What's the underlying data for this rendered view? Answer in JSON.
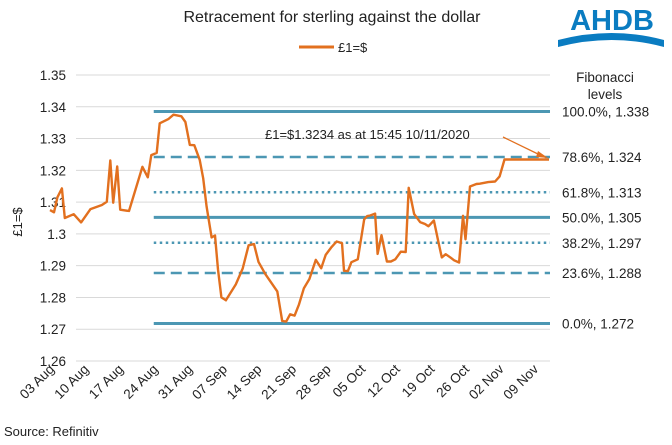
{
  "logo": {
    "text": "AHDB",
    "color": "#0a7cc1"
  },
  "source": "Source: Refinitiv",
  "colors": {
    "series": "#e2701f",
    "level": "#4c97b3",
    "grid": "#d9d9d9"
  },
  "chart_data": {
    "type": "line",
    "title": "Retracement for sterling against the dollar",
    "ylabel": "£1=$",
    "xlabel": "",
    "ylim": [
      1.26,
      1.35
    ],
    "yticks": [
      "1.26",
      "1.27",
      "1.28",
      "1.29",
      "1.3",
      "1.31",
      "1.32",
      "1.33",
      "1.34",
      "1.35"
    ],
    "grid": "horizontal",
    "legend_position": "top",
    "x_range": [
      0,
      101
    ],
    "x_ticks": [
      {
        "label": "03 Aug",
        "x": 0
      },
      {
        "label": "10 Aug",
        "x": 7
      },
      {
        "label": "17 Aug",
        "x": 14
      },
      {
        "label": "24 Aug",
        "x": 21
      },
      {
        "label": "31 Aug",
        "x": 28
      },
      {
        "label": "07 Sep",
        "x": 35
      },
      {
        "label": "14 Sep",
        "x": 42
      },
      {
        "label": "21 Sep",
        "x": 49
      },
      {
        "label": "28 Sep",
        "x": 56
      },
      {
        "label": "05 Oct",
        "x": 63
      },
      {
        "label": "12 Oct",
        "x": 70
      },
      {
        "label": "19 Oct",
        "x": 77
      },
      {
        "label": "26 Oct",
        "x": 84
      },
      {
        "label": "02 Nov",
        "x": 91
      },
      {
        "label": "09 Nov",
        "x": 98
      }
    ],
    "series": [
      {
        "name": "£1=$",
        "color": "#e2701f",
        "x": [
          0,
          0.8,
          1.5,
          2.4,
          3.0,
          4.8,
          6.3,
          8.2,
          10.5,
          11.5,
          12.2,
          12.8,
          13.6,
          14.2,
          16.0,
          18.7,
          19.8,
          20.5,
          21.6,
          22.2,
          24.0,
          25.0,
          26.6,
          27.4,
          28.3,
          29.2,
          30.3,
          31.0,
          31.7,
          32.7,
          33.4,
          34.0,
          34.7,
          35.6,
          37.6,
          39.0,
          40.2,
          41.3,
          42.2,
          43.6,
          46.0,
          47.0,
          47.8,
          48.6,
          49.5,
          50.4,
          51.4,
          52.5,
          53.8,
          54.9,
          55.8,
          56.9,
          58.0,
          59.1,
          59.5,
          60.3,
          61.0,
          62.3,
          63.6,
          64.2,
          64.8,
          65.8,
          66.3,
          67.1,
          68.2,
          69.0,
          69.9,
          71.0,
          72.0,
          72.6,
          73.7,
          74.9,
          75.9,
          76.6,
          77.7,
          78.6,
          79.3,
          80.1,
          81.1,
          81.8,
          82.8,
          83.6,
          84.1,
          85.0,
          86.3,
          87.0,
          88.7,
          90.1,
          91.0,
          92.0,
          92.6,
          93.3,
          94.2,
          95.0,
          95.7,
          96.6,
          97.1,
          98.0,
          99.0,
          100.2,
          101.0
        ],
        "y": [
          1.3075,
          1.3068,
          1.3115,
          1.3143,
          1.305,
          1.3062,
          1.3036,
          1.3078,
          1.3091,
          1.3101,
          1.3231,
          1.3098,
          1.3212,
          1.3076,
          1.3072,
          1.3211,
          1.3178,
          1.3248,
          1.3255,
          1.3348,
          1.3362,
          1.3375,
          1.337,
          1.3352,
          1.328,
          1.3279,
          1.3233,
          1.3175,
          1.3086,
          1.2989,
          1.2995,
          1.2888,
          1.28,
          1.2791,
          1.2841,
          1.2891,
          1.2964,
          1.2968,
          1.2912,
          1.2873,
          1.2819,
          1.2726,
          1.2724,
          1.2747,
          1.2743,
          1.2778,
          1.2829,
          1.2858,
          1.2918,
          1.2892,
          1.2934,
          1.2957,
          1.2976,
          1.2971,
          1.2884,
          1.2883,
          1.2911,
          1.292,
          1.3046,
          1.3056,
          1.3058,
          1.3064,
          1.2937,
          1.2996,
          1.2913,
          1.2913,
          1.292,
          1.2944,
          1.2943,
          1.3145,
          1.3063,
          1.3037,
          1.3031,
          1.3024,
          1.3042,
          1.2976,
          1.2926,
          1.2936,
          1.2925,
          1.2917,
          1.291,
          1.3057,
          1.2983,
          1.3149,
          1.3157,
          1.3158,
          1.3163,
          1.3165,
          1.3181,
          1.3234,
          1.3234,
          1.3234,
          1.3234,
          1.3234,
          1.3234,
          1.3234,
          1.3234,
          1.3234,
          1.3234,
          1.3234,
          1.3234
        ]
      }
    ],
    "fibonacci": {
      "heading_line1": "Fibonacci",
      "heading_line2": "levels",
      "x_start": 21,
      "levels": [
        {
          "label": "100.0%, 1.338",
          "value": 1.3385,
          "style": "solid"
        },
        {
          "label": "78.6%, 1.324",
          "value": 1.3242,
          "style": "dashed"
        },
        {
          "label": "61.8%, 1.313",
          "value": 1.3131,
          "style": "dotted"
        },
        {
          "label": "50.0%, 1.305",
          "value": 1.3052,
          "style": "solid"
        },
        {
          "label": "38.2%, 1.297",
          "value": 1.2972,
          "style": "dotted"
        },
        {
          "label": "23.6%, 1.288",
          "value": 1.2877,
          "style": "dashed"
        },
        {
          "label": "0.0%, 1.272",
          "value": 1.2718,
          "style": "solid"
        }
      ]
    },
    "annotation": {
      "text": "£1=$1.3234 as at 15:45 10/11/2020",
      "value": 1.3234
    }
  }
}
